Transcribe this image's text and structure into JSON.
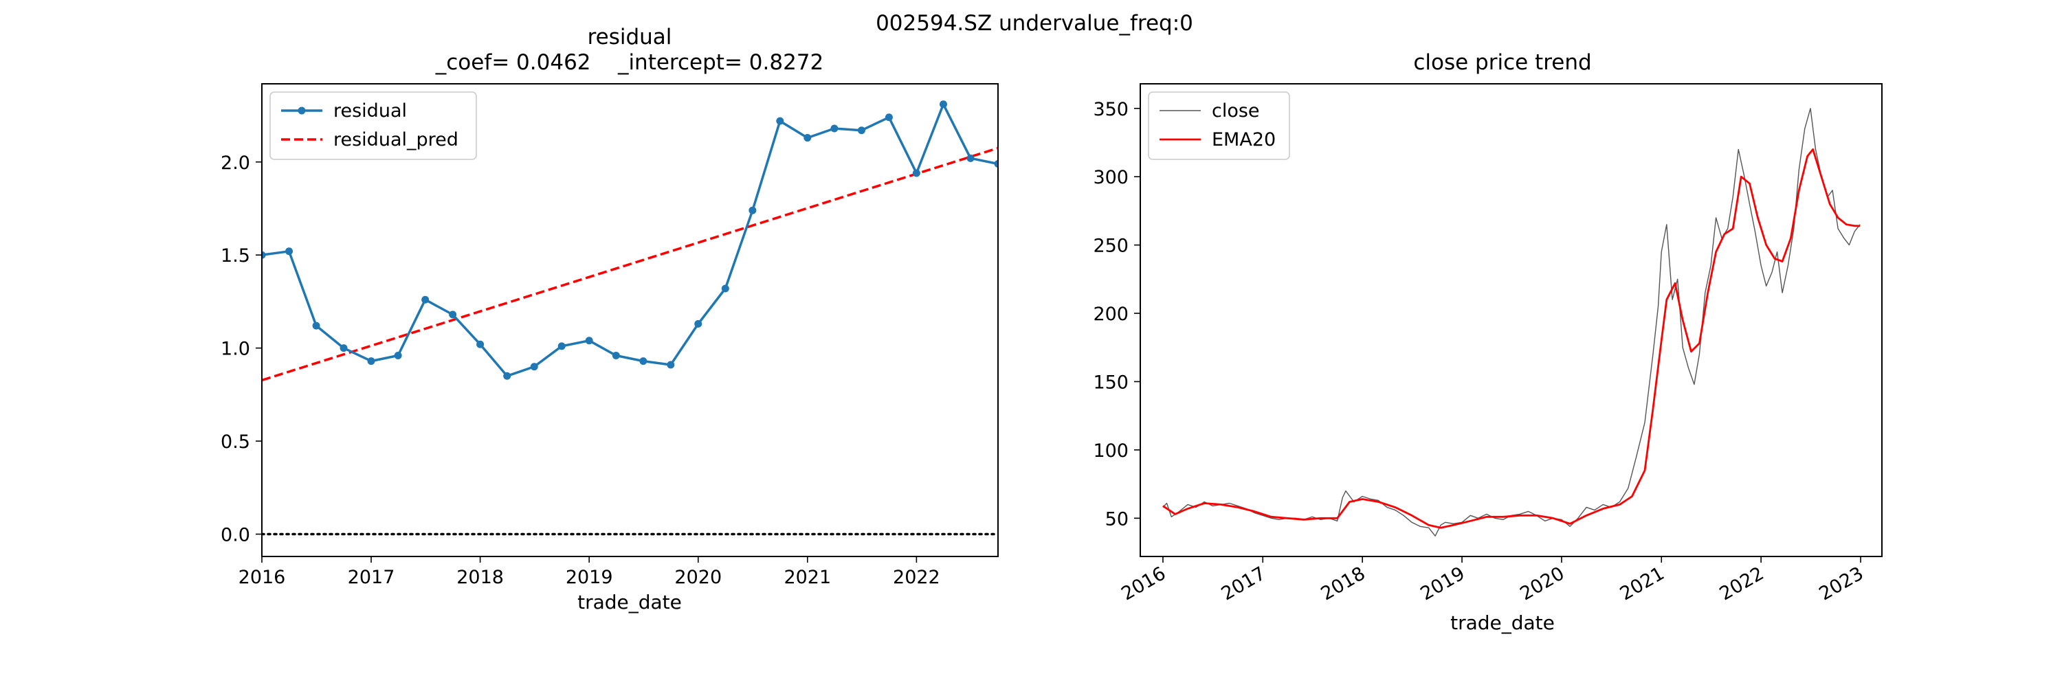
{
  "suptitle": "002594.SZ undervalue_freq:0",
  "chart_data": [
    {
      "type": "line",
      "title": "residual",
      "subtitle": "_coef= 0.0462    _intercept= 0.8272",
      "xlabel": "trade_date",
      "ylabel": "",
      "x_ticks": [
        "2016",
        "2017",
        "2018",
        "2019",
        "2020",
        "2021",
        "2022"
      ],
      "y_ticks": [
        "0.0",
        "0.5",
        "1.0",
        "1.5",
        "2.0"
      ],
      "xlim": [
        "2016-01-01",
        "2022-10-01"
      ],
      "ylim": [
        -0.12,
        2.42
      ],
      "legend_position": "upper-left",
      "x": [
        "2016-01-01",
        "2016-04-01",
        "2016-07-01",
        "2016-10-01",
        "2017-01-01",
        "2017-04-01",
        "2017-07-01",
        "2017-10-01",
        "2018-01-01",
        "2018-04-01",
        "2018-07-01",
        "2018-10-01",
        "2019-01-01",
        "2019-04-01",
        "2019-07-01",
        "2019-10-01",
        "2020-01-01",
        "2020-04-01",
        "2020-07-01",
        "2020-10-01",
        "2021-01-01",
        "2021-04-01",
        "2021-07-01",
        "2021-10-01",
        "2022-01-01",
        "2022-04-01",
        "2022-07-01",
        "2022-10-01"
      ],
      "series": [
        {
          "name": "residual",
          "color": "#1f77b4",
          "style": "solid-marker",
          "values": [
            1.5,
            1.52,
            1.12,
            1.0,
            0.93,
            0.96,
            1.26,
            1.18,
            1.02,
            0.85,
            0.9,
            1.01,
            1.04,
            0.96,
            0.93,
            0.91,
            1.13,
            1.32,
            1.74,
            2.22,
            2.13,
            2.18,
            2.17,
            2.24,
            1.94,
            2.31,
            2.02,
            1.99
          ]
        },
        {
          "name": "residual_pred",
          "color": "#ff0000",
          "style": "dashed",
          "line": {
            "x": [
              "2016-01-01",
              "2022-10-01"
            ],
            "y": [
              0.8272,
              2.0746
            ]
          }
        }
      ],
      "reference_line": {
        "y": 0.0,
        "style": "dotted",
        "color": "#000000"
      }
    },
    {
      "type": "line",
      "title": "close price trend",
      "xlabel": "trade_date",
      "ylabel": "",
      "x_ticks": [
        "2016",
        "2017",
        "2018",
        "2019",
        "2020",
        "2021",
        "2022",
        "2023"
      ],
      "y_ticks": [
        "50",
        "100",
        "150",
        "200",
        "250",
        "300",
        "350"
      ],
      "xlim": [
        "2015-10-10",
        "2023-03-20"
      ],
      "ylim": [
        22,
        368
      ],
      "legend_position": "upper-left",
      "series": [
        {
          "name": "close",
          "color": "#555555",
          "style": "thin",
          "x": [
            "2016-01-01",
            "2016-01-15",
            "2016-02-01",
            "2016-03-01",
            "2016-04-01",
            "2016-05-01",
            "2016-06-01",
            "2016-07-01",
            "2016-08-01",
            "2016-09-01",
            "2016-10-01",
            "2016-11-01",
            "2016-12-01",
            "2017-01-01",
            "2017-02-01",
            "2017-03-01",
            "2017-04-01",
            "2017-05-01",
            "2017-06-01",
            "2017-07-01",
            "2017-08-01",
            "2017-09-01",
            "2017-10-01",
            "2017-10-20",
            "2017-11-01",
            "2017-12-01",
            "2018-01-01",
            "2018-02-01",
            "2018-03-01",
            "2018-04-01",
            "2018-05-01",
            "2018-06-01",
            "2018-07-01",
            "2018-08-01",
            "2018-09-01",
            "2018-09-25",
            "2018-10-15",
            "2018-11-01",
            "2018-12-01",
            "2019-01-01",
            "2019-02-01",
            "2019-03-01",
            "2019-04-01",
            "2019-05-01",
            "2019-06-01",
            "2019-07-01",
            "2019-08-01",
            "2019-09-01",
            "2019-10-01",
            "2019-11-01",
            "2019-12-01",
            "2020-01-01",
            "2020-02-01",
            "2020-03-01",
            "2020-04-01",
            "2020-05-01",
            "2020-06-01",
            "2020-07-01",
            "2020-08-01",
            "2020-09-01",
            "2020-10-01",
            "2020-11-01",
            "2020-12-01",
            "2020-12-20",
            "2021-01-01",
            "2021-01-20",
            "2021-02-10",
            "2021-03-01",
            "2021-03-20",
            "2021-04-10",
            "2021-05-01",
            "2021-05-20",
            "2021-06-10",
            "2021-07-01",
            "2021-07-20",
            "2021-08-10",
            "2021-09-01",
            "2021-09-20",
            "2021-10-10",
            "2021-11-01",
            "2021-11-20",
            "2021-12-10",
            "2022-01-01",
            "2022-01-20",
            "2022-02-10",
            "2022-03-01",
            "2022-03-20",
            "2022-04-10",
            "2022-05-01",
            "2022-05-20",
            "2022-06-10",
            "2022-07-01",
            "2022-07-20",
            "2022-08-10",
            "2022-09-01",
            "2022-09-20",
            "2022-10-10",
            "2022-11-01",
            "2022-11-20",
            "2022-12-10",
            "2022-12-30"
          ],
          "values": [
            58,
            61,
            51,
            55,
            60,
            58,
            62,
            59,
            60,
            61,
            59,
            57,
            54,
            52,
            50,
            49,
            50,
            50,
            49,
            51,
            49,
            50,
            48,
            65,
            70,
            62,
            66,
            64,
            63,
            58,
            56,
            52,
            47,
            44,
            43,
            37,
            45,
            47,
            46,
            47,
            52,
            50,
            53,
            50,
            49,
            52,
            53,
            55,
            52,
            48,
            50,
            49,
            44,
            50,
            58,
            56,
            60,
            58,
            62,
            72,
            95,
            120,
            170,
            205,
            245,
            265,
            210,
            225,
            175,
            160,
            148,
            170,
            215,
            235,
            270,
            255,
            262,
            285,
            320,
            300,
            280,
            260,
            235,
            220,
            230,
            245,
            215,
            235,
            262,
            305,
            335,
            350,
            320,
            300,
            285,
            290,
            262,
            255,
            250,
            260,
            265
          ]
        },
        {
          "name": "EMA20",
          "color": "#ff0000",
          "style": "solid",
          "x": [
            "2016-01-01",
            "2016-02-15",
            "2016-04-01",
            "2016-06-01",
            "2016-08-01",
            "2016-10-01",
            "2016-12-01",
            "2017-02-01",
            "2017-04-01",
            "2017-06-01",
            "2017-08-01",
            "2017-10-01",
            "2017-11-15",
            "2018-01-01",
            "2018-03-01",
            "2018-05-01",
            "2018-07-01",
            "2018-09-01",
            "2018-10-15",
            "2018-12-01",
            "2019-02-01",
            "2019-04-01",
            "2019-06-01",
            "2019-08-01",
            "2019-10-01",
            "2019-12-01",
            "2020-02-01",
            "2020-04-01",
            "2020-06-01",
            "2020-08-01",
            "2020-09-15",
            "2020-11-01",
            "2020-12-01",
            "2021-01-01",
            "2021-01-20",
            "2021-02-20",
            "2021-03-20",
            "2021-04-20",
            "2021-05-20",
            "2021-06-20",
            "2021-07-20",
            "2021-08-20",
            "2021-09-20",
            "2021-10-20",
            "2021-11-20",
            "2021-12-20",
            "2022-01-20",
            "2022-02-20",
            "2022-03-20",
            "2022-04-20",
            "2022-05-20",
            "2022-06-20",
            "2022-07-10",
            "2022-08-10",
            "2022-09-10",
            "2022-10-10",
            "2022-11-10",
            "2022-12-10",
            "2022-12-30"
          ],
          "values": [
            59,
            53,
            57,
            61,
            60,
            58,
            55,
            51,
            50,
            49,
            50,
            50,
            62,
            64,
            62,
            58,
            52,
            45,
            43,
            45,
            48,
            51,
            51,
            52,
            52,
            50,
            46,
            52,
            57,
            60,
            66,
            85,
            130,
            180,
            210,
            222,
            195,
            172,
            178,
            215,
            245,
            258,
            262,
            300,
            295,
            270,
            250,
            240,
            238,
            255,
            290,
            315,
            320,
            300,
            280,
            270,
            265,
            264,
            264
          ]
        }
      ]
    }
  ]
}
